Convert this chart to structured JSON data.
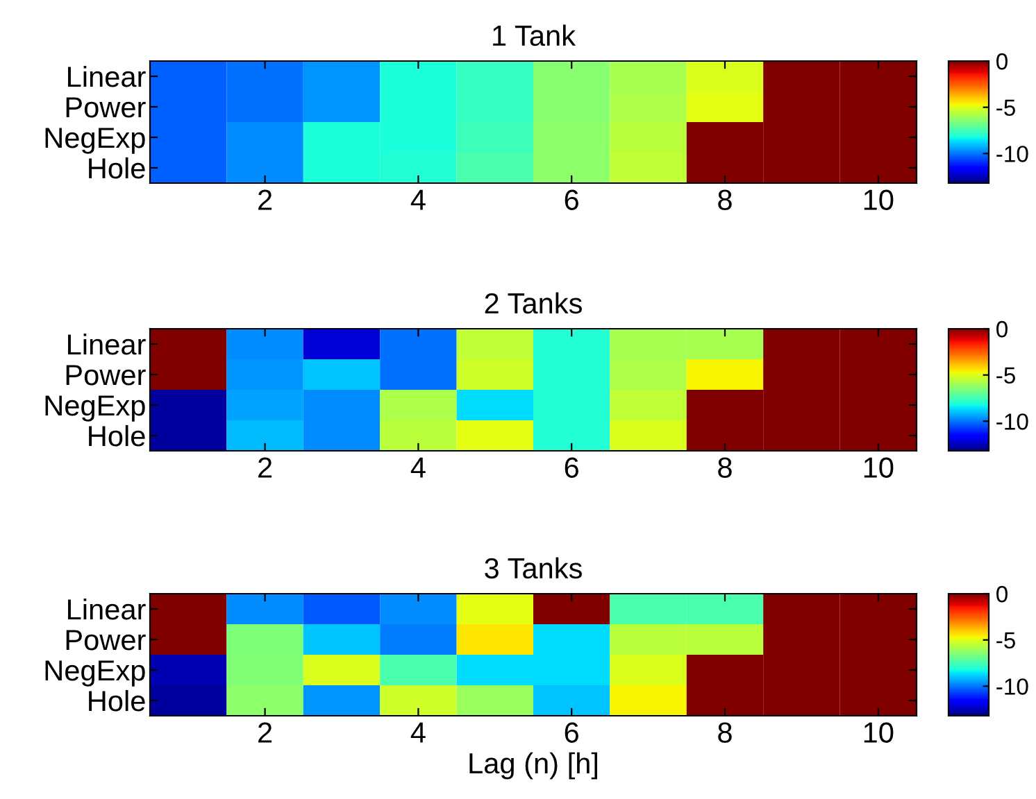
{
  "chart_data": [
    {
      "type": "heatmap",
      "title": "1 Tank",
      "categories": [
        null,
        "2",
        null,
        "4",
        null,
        "6",
        null,
        "8",
        null,
        "10"
      ],
      "y_categories": [
        "Linear",
        "Power",
        "NegExp",
        "Hole"
      ],
      "cells": [
        [
          -10.3,
          -10.1,
          -9.6,
          -8.1,
          -7.7,
          -6.4,
          -5.9,
          -5.1,
          0,
          0
        ],
        [
          -10.3,
          -10.1,
          -9.6,
          -8.1,
          -7.7,
          -6.4,
          -5.8,
          -4.9,
          0,
          0
        ],
        [
          -10.3,
          -9.7,
          -8.1,
          -8.1,
          -7.6,
          -6.3,
          -5.6,
          0,
          0,
          0
        ],
        [
          -10.3,
          -9.7,
          -8.1,
          -8.0,
          -7.4,
          -6.3,
          -5.5,
          0,
          0,
          0
        ]
      ],
      "clim": [
        -13.2,
        0
      ],
      "cticks": [
        -10,
        -5,
        0
      ]
    },
    {
      "type": "heatmap",
      "title": "2 Tanks",
      "categories": [
        null,
        "2",
        null,
        "4",
        null,
        "6",
        null,
        "8",
        null,
        "10"
      ],
      "y_categories": [
        "Linear",
        "Power",
        "NegExp",
        "Hole"
      ],
      "cells": [
        [
          0,
          -9.7,
          -12.2,
          -10.1,
          -5.5,
          -8.0,
          -5.9,
          -5.9,
          0,
          0
        ],
        [
          0,
          -9.6,
          -9.0,
          -10.1,
          -5.3,
          -8.0,
          -5.8,
          -4.6,
          0,
          0
        ],
        [
          -12.8,
          -9.4,
          -9.7,
          -5.8,
          -8.7,
          -8.0,
          -5.5,
          0,
          0,
          0
        ],
        [
          -12.8,
          -9.1,
          -9.7,
          -5.6,
          -4.9,
          -8.0,
          -5.1,
          0,
          0,
          0
        ]
      ],
      "clim": [
        -13.2,
        0
      ],
      "cticks": [
        -10,
        -5,
        0
      ]
    },
    {
      "type": "heatmap",
      "title": "3 Tanks",
      "xlabel": "Lag (n) [h]",
      "categories": [
        null,
        "2",
        null,
        "4",
        null,
        "6",
        null,
        "8",
        null,
        "10"
      ],
      "y_categories": [
        "Linear",
        "Power",
        "NegExp",
        "Hole"
      ],
      "cells": [
        [
          0,
          -9.7,
          -10.4,
          -9.7,
          -4.9,
          0,
          -7.4,
          -7.4,
          0,
          0
        ],
        [
          0,
          -6.6,
          -9.0,
          -9.9,
          -4.4,
          -8.7,
          -5.6,
          -5.6,
          0,
          0
        ],
        [
          -12.6,
          -6.5,
          -5.1,
          -7.4,
          -8.7,
          -8.7,
          -5.1,
          0,
          0,
          0
        ],
        [
          -12.8,
          -6.3,
          -9.6,
          -5.3,
          -6.1,
          -9.0,
          -4.6,
          0,
          0,
          0
        ]
      ],
      "clim": [
        -13.2,
        0
      ],
      "cticks": [
        -10,
        -5,
        0
      ]
    }
  ]
}
